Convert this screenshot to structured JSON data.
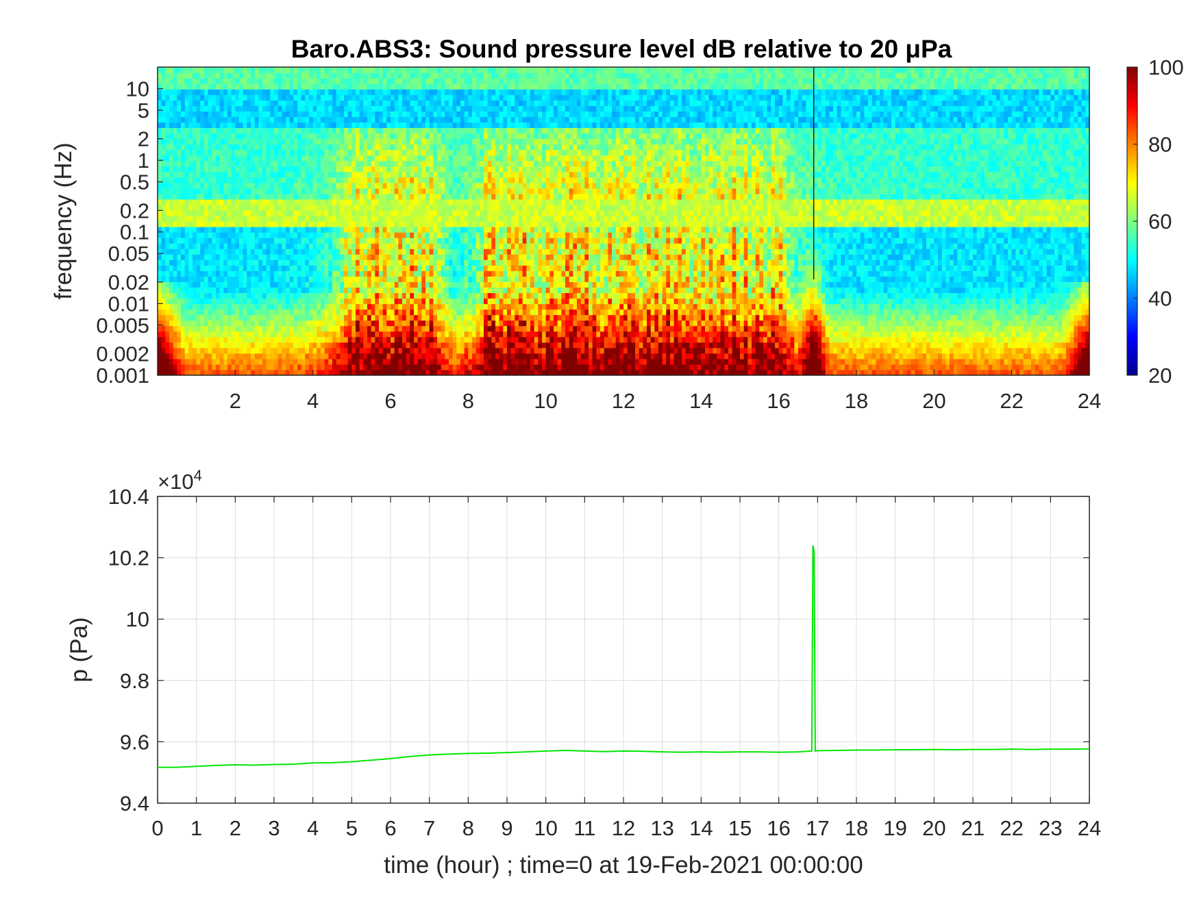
{
  "chart_data": [
    {
      "type": "heatmap",
      "title": "Baro.ABS3: Sound pressure level dB relative to 20 μPa",
      "xlabel": "",
      "ylabel": "frequency (Hz)",
      "x_range": [
        0,
        24
      ],
      "x_ticks": [
        "2",
        "4",
        "6",
        "8",
        "10",
        "12",
        "14",
        "16",
        "18",
        "20",
        "22",
        "24"
      ],
      "y_scale": "log",
      "y_range": [
        0.001,
        20
      ],
      "y_ticks": [
        "0.001",
        "0.002",
        "0.005",
        "0.01",
        "0.02",
        "0.05",
        "0.1",
        "0.2",
        "0.5",
        "1",
        "2",
        "5",
        "10"
      ],
      "colorbar": {
        "range": [
          20,
          100
        ],
        "ticks": [
          "20",
          "40",
          "60",
          "80",
          "100"
        ],
        "colormap": "jet"
      },
      "features": {
        "microbarom_band_hz": [
          0.12,
          0.3
        ],
        "active_periods_hours": [
          [
            5,
            7
          ],
          [
            8.5,
            16
          ]
        ],
        "impulse_event_hour": 16.9
      }
    },
    {
      "type": "line",
      "title": "",
      "xlabel": "time (hour) ; time=0 at 19-Feb-2021 00:00:00",
      "ylabel": "p (Pa)",
      "y_multiplier": "×10",
      "y_multiplier_exp": "4",
      "x_range": [
        0,
        24
      ],
      "y_range": [
        9.4,
        10.4
      ],
      "x_ticks": [
        "0",
        "1",
        "2",
        "3",
        "4",
        "5",
        "6",
        "7",
        "8",
        "9",
        "10",
        "11",
        "12",
        "13",
        "14",
        "15",
        "16",
        "17",
        "18",
        "19",
        "20",
        "21",
        "22",
        "23",
        "24"
      ],
      "y_ticks": [
        "9.4",
        "9.6",
        "9.8",
        "10",
        "10.2",
        "10.4"
      ],
      "grid": true,
      "series": [
        {
          "color": "#00e600",
          "x": [
            0,
            0.5,
            1,
            1.5,
            2,
            2.5,
            3,
            3.5,
            4,
            4.5,
            5,
            5.5,
            6,
            6.5,
            7,
            7.5,
            8,
            8.5,
            9,
            9.5,
            10,
            10.5,
            11,
            11.5,
            12,
            12.5,
            13,
            13.5,
            14,
            14.5,
            15,
            15.5,
            16,
            16.5,
            16.85,
            16.88,
            16.91,
            16.94,
            17,
            17.5,
            18,
            18.5,
            19,
            19.5,
            20,
            20.5,
            21,
            21.5,
            22,
            22.5,
            23,
            23.5,
            24
          ],
          "y": [
            9.517,
            9.517,
            9.52,
            9.523,
            9.525,
            9.524,
            9.526,
            9.527,
            9.531,
            9.532,
            9.535,
            9.54,
            9.545,
            9.552,
            9.557,
            9.56,
            9.562,
            9.563,
            9.565,
            9.567,
            9.57,
            9.572,
            9.57,
            9.568,
            9.57,
            9.569,
            9.567,
            9.566,
            9.567,
            9.566,
            9.567,
            9.567,
            9.566,
            9.567,
            9.57,
            10.24,
            10.22,
            9.57,
            9.571,
            9.572,
            9.573,
            9.573,
            9.574,
            9.574,
            9.575,
            9.574,
            9.575,
            9.575,
            9.576,
            9.575,
            9.576,
            9.576,
            9.577
          ]
        }
      ]
    }
  ]
}
